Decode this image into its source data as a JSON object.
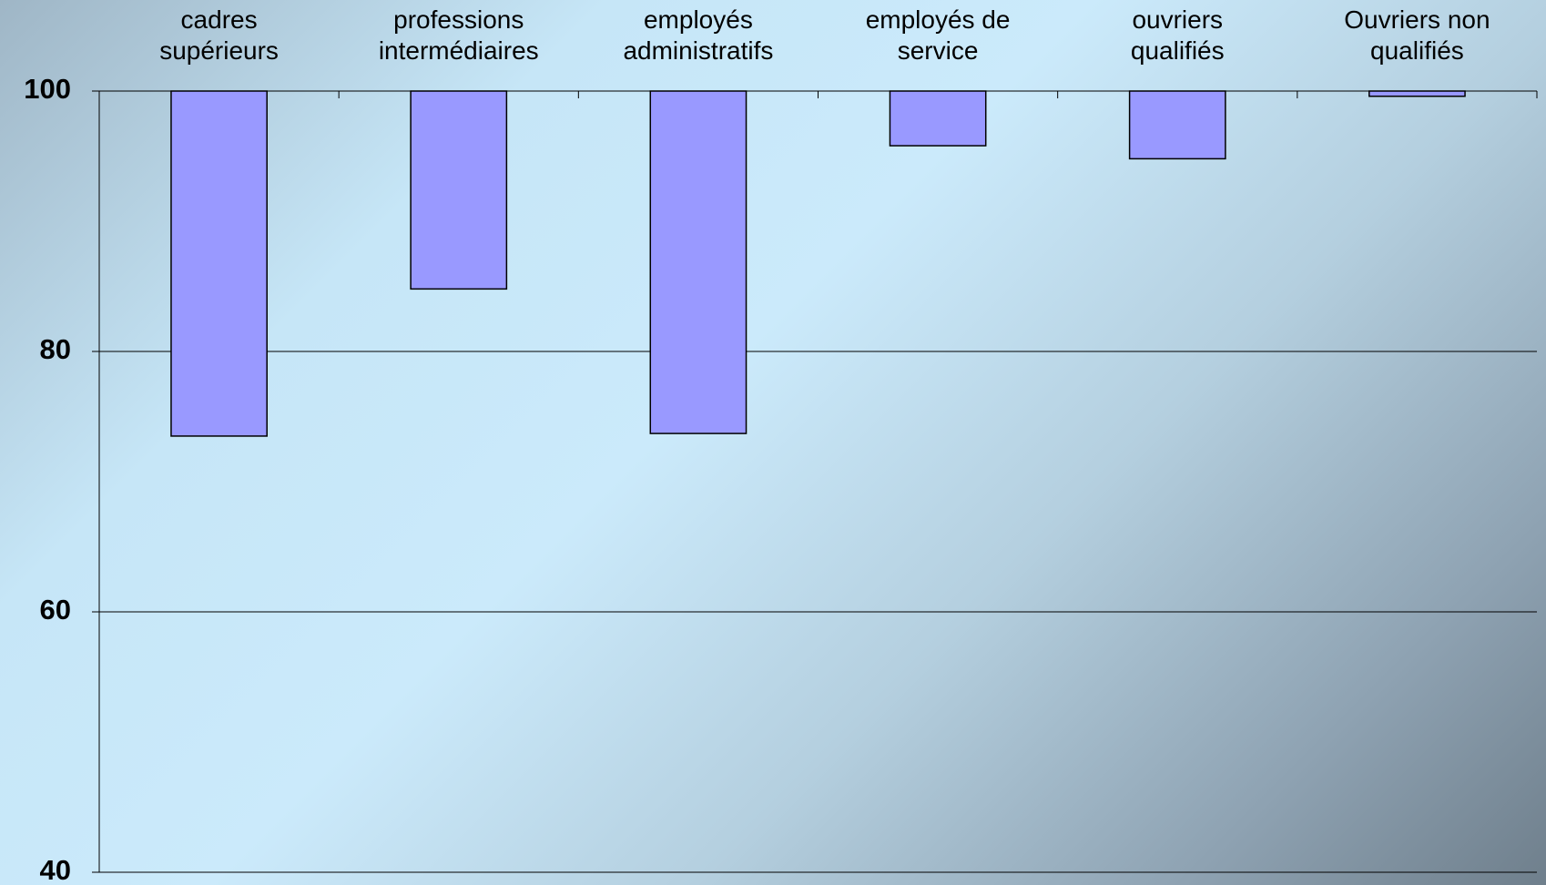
{
  "chart_data": {
    "type": "bar",
    "categories": [
      "cadres supérieurs",
      "professions intermédiaires",
      "employés administratifs",
      "employés de service",
      "ouvriers qualifiés",
      "Ouvriers non qualifiés"
    ],
    "values": [
      73.5,
      84.8,
      73.7,
      95.8,
      94.8,
      99.6
    ],
    "color": "#9999ff",
    "ylim": [
      40,
      100
    ],
    "yticks": [
      40,
      60,
      80,
      100
    ],
    "grid": true
  }
}
